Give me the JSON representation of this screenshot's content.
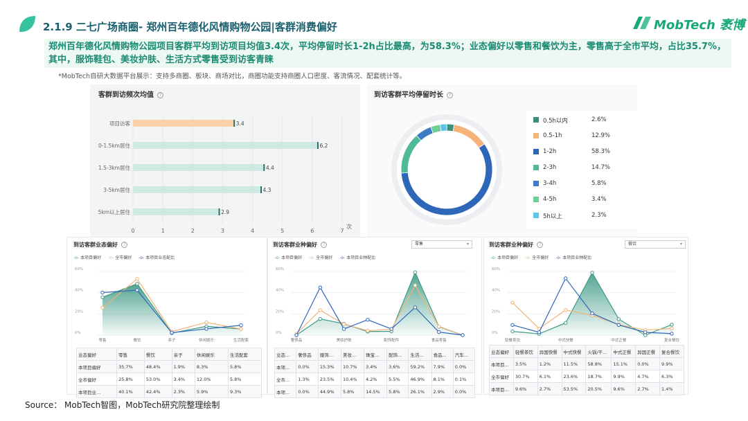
{
  "header": {
    "title": "2.1.9 二七广场商圈- 郑州百年德化风情购物公园|客群消费偏好",
    "logo_text": "MobTech 袤博",
    "summary": "郑州百年德化风情购物公园项目客群平均到访项目均值3.4次，平均停留时长1-2h占比最高，为58.3%；业态偏好以零售和餐饮为主，零售高于全市平均，占比35.7%，其中，服饰鞋包、美妆护肤、生活方式零售受到访客青睐",
    "note": "*MobTech自研大数据平台展示：支持多商圈、板块、商场对比，商圈功能支持商圈人口密度、客流情况、配套统计等。",
    "help_glyph": "?"
  },
  "source": "Source：  MobTech智图，MobTech研究院整理绘制",
  "colors": {
    "brand": "#18a77a",
    "title": "#1a5f6e",
    "bar_orange": "#f9d0a8",
    "bar_teal": "#cde9e2",
    "bar_end": "#2b6e63",
    "green": "#3f9a86",
    "orange": "#f2b277",
    "blue": "#2e66b8"
  },
  "chart_data": [
    {
      "id": "visit_freq",
      "type": "bar",
      "orientation": "horizontal",
      "title": "客群到访频次均值",
      "categories": [
        "项目访客",
        "0-1.5km居住",
        "1.5-3km居住",
        "3-5km居住",
        "5km以上居住"
      ],
      "values": [
        3.4,
        6.2,
        4.4,
        4.3,
        2.9
      ],
      "data_labels": [
        "3.4",
        "6.2",
        "4.4",
        "4.3",
        "2.9"
      ],
      "xticks": [
        "0",
        "1",
        "2",
        "3",
        "4",
        "5",
        "6",
        "7"
      ],
      "xunit": "次",
      "xlim": [
        0,
        7
      ]
    },
    {
      "id": "stay_duration",
      "type": "pie",
      "donut": true,
      "title": "到访客群平均停留时长",
      "labels": [
        "0.5h以内",
        "0.5-1h",
        "1-2h",
        "2-3h",
        "3-4h",
        "4-5h",
        "5h以上"
      ],
      "values": [
        2.6,
        12.9,
        58.3,
        14.7,
        5.8,
        3.4,
        2.3
      ],
      "value_labels": [
        "2.6%",
        "12.9%",
        "58.3%",
        "14.7%",
        "5.8%",
        "3.4%",
        "2.3%"
      ],
      "colors": [
        "#3f8f7f",
        "#f5b279",
        "#2e66b8",
        "#4fb99a",
        "#3f7cc8",
        "#6fcf97",
        "#5bc7e8"
      ]
    },
    {
      "id": "format_pref",
      "type": "line",
      "title": "到访客群业态偏好",
      "legend": [
        "本项目偏好",
        "全市偏好",
        "本项目业态配比"
      ],
      "x_labels": [
        "零售",
        "餐饮",
        "亲子",
        "休闲娱乐",
        "生活配套"
      ],
      "yticks": [
        "0%",
        "20%",
        "40%",
        "60%"
      ],
      "ylim": [
        0,
        60
      ],
      "series": [
        {
          "name": "本项目偏好",
          "values": [
            35.7,
            48.4,
            1.9,
            8.3,
            5.8
          ]
        },
        {
          "name": "全市偏好",
          "values": [
            25.8,
            53.0,
            3.4,
            12.0,
            5.8
          ]
        },
        {
          "name": "本项目业态配比",
          "values": [
            40.1,
            42.4,
            2.3,
            5.9,
            9.3
          ]
        }
      ],
      "table": {
        "header": [
          "业态偏好",
          "零售",
          "餐饮",
          "亲子",
          "休闲娱乐",
          "生活配套"
        ],
        "rows": [
          [
            "本项目偏好",
            "35.7%",
            "48.4%",
            "1.9%",
            "8.3%",
            "5.8%"
          ],
          [
            "全市偏好",
            "25.8%",
            "53.0%",
            "3.4%",
            "12.0%",
            "5.8%"
          ],
          [
            "本项目业...",
            "40.1%",
            "42.4%",
            "2.3%",
            "5.9%",
            "9.3%"
          ]
        ]
      }
    },
    {
      "id": "retail_pref",
      "type": "line",
      "title": "到访客群业种偏好",
      "dropdown": "零售",
      "legend": [
        "本项目偏好",
        "全市偏好",
        "本项目业种配比"
      ],
      "x_labels": [
        "奢侈品",
        "",
        "美妆护肤",
        "",
        "配饰配件",
        "",
        "食品零售",
        ""
      ],
      "yticks": [
        "0%",
        "20%",
        "40%",
        "60%"
      ],
      "ylim": [
        0,
        60
      ],
      "series": [
        {
          "name": "本项目偏好",
          "values": [
            0.0,
            15.3,
            10.7,
            3.4,
            3.6,
            59.2,
            7.9,
            0.0
          ]
        },
        {
          "name": "全市偏好",
          "values": [
            1.3,
            23.5,
            10.4,
            4.2,
            5.5,
            46.9,
            8.1,
            0.1
          ]
        },
        {
          "name": "本项目业种配比",
          "values": [
            0.0,
            44.9,
            5.8,
            14.5,
            5.8,
            26.1,
            2.9,
            0.0
          ]
        }
      ],
      "table": {
        "header": [
          "业态...",
          "奢侈品",
          "服饰...",
          "美妆...",
          "珠宝...",
          "配饰...",
          "生活...",
          "食品...",
          "汽车..."
        ],
        "rows": [
          [
            "本项...",
            "0.0%",
            "15.3%",
            "10.7%",
            "3.4%",
            "3.6%",
            "59.2%",
            "7.9%",
            "0.0%"
          ],
          [
            "全市...",
            "1.3%",
            "23.5%",
            "10.4%",
            "4.2%",
            "5.5%",
            "46.9%",
            "8.1%",
            "0.1%"
          ],
          [
            "本项...",
            "0.0%",
            "44.9%",
            "5.8%",
            "14.5%",
            "5.8%",
            "26.1%",
            "2.9%",
            "0.0%"
          ]
        ]
      }
    },
    {
      "id": "dining_pref",
      "type": "line",
      "title": "到访客群业种偏好",
      "dropdown": "餐饮",
      "legend": [
        "本项目偏好",
        "全市偏好",
        "本项目业种配比"
      ],
      "x_labels": [
        "轻餐茶饮",
        "",
        "中式快餐",
        "",
        "中式正餐",
        "",
        "复合餐饮"
      ],
      "yticks": [
        "0%",
        "20%",
        "40%",
        "60%"
      ],
      "ylim": [
        0,
        60
      ],
      "series": [
        {
          "name": "本项目偏好",
          "values": [
            3.5,
            1.2,
            11.5,
            58.8,
            15.1,
            0.0,
            9.9
          ]
        },
        {
          "name": "全市偏好",
          "values": [
            30.7,
            6.1,
            23.6,
            18.7,
            9.9,
            4.7,
            6.3
          ]
        },
        {
          "name": "本项目业种配比",
          "values": [
            9.6,
            2.7,
            53.5,
            20.5,
            9.6,
            2.7,
            1.4
          ]
        }
      ],
      "table": {
        "header": [
          "业态偏好",
          "轻餐茶饮",
          "异国快餐",
          "中式快餐",
          "火锅/干...",
          "中式正餐",
          "异国正餐",
          "复合餐饮"
        ],
        "rows": [
          [
            "本项目...",
            "3.5%",
            "1.2%",
            "11.5%",
            "58.8%",
            "15.1%",
            "0.0%",
            "9.9%"
          ],
          [
            "全市偏好",
            "30.7%",
            "6.1%",
            "23.6%",
            "18.7%",
            "9.9%",
            "4.7%",
            "6.3%"
          ],
          [
            "本项目...",
            "9.6%",
            "2.7%",
            "53.5%",
            "20.5%",
            "9.6%",
            "2.7%",
            "1.4%"
          ]
        ]
      }
    }
  ]
}
